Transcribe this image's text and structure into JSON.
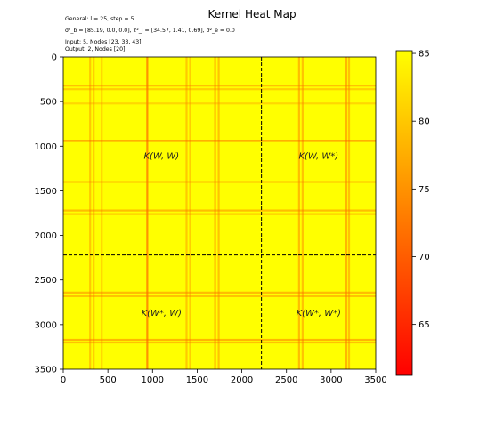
{
  "chart_data": {
    "type": "heatmap",
    "title": "Kernel Heat Map",
    "annotations": [
      "General: l = 25, step = 5",
      "σ²_b = [85.19, 0.0, 0.0], τ²_j = [34.57, 1.41, 0.69], σ²_e = 0.0",
      "Input: 5, Nodes [23, 33, 43]",
      "Output: 2, Nodes [20]"
    ],
    "x_range": [
      0,
      3500
    ],
    "y_range": [
      0,
      3500
    ],
    "y_inverted": true,
    "x_ticks": [
      "0",
      "500",
      "1000",
      "1500",
      "2000",
      "2500",
      "3000",
      "3500"
    ],
    "y_ticks": [
      "0",
      "500",
      "1000",
      "1500",
      "2000",
      "2500",
      "3000",
      "3500"
    ],
    "divider": 2220,
    "divider_style": "dashed",
    "stripes_x": [
      {
        "at": 300,
        "strength": 0.25
      },
      {
        "at": 340,
        "strength": 0.2
      },
      {
        "at": 430,
        "strength": 0.15
      },
      {
        "at": 940,
        "strength": 0.65
      },
      {
        "at": 1380,
        "strength": 0.25
      },
      {
        "at": 1420,
        "strength": 0.2
      },
      {
        "at": 1700,
        "strength": 0.35
      },
      {
        "at": 1740,
        "strength": 0.3
      },
      {
        "at": 2640,
        "strength": 0.35
      },
      {
        "at": 2680,
        "strength": 0.3
      },
      {
        "at": 3170,
        "strength": 0.4
      },
      {
        "at": 3200,
        "strength": 0.3
      }
    ],
    "stripes_y": [
      {
        "at": 320,
        "strength": 0.3
      },
      {
        "at": 360,
        "strength": 0.2
      },
      {
        "at": 520,
        "strength": 0.12
      },
      {
        "at": 940,
        "strength": 0.65
      },
      {
        "at": 1400,
        "strength": 0.25
      },
      {
        "at": 1720,
        "strength": 0.35
      },
      {
        "at": 1760,
        "strength": 0.25
      },
      {
        "at": 2640,
        "strength": 0.35
      },
      {
        "at": 2680,
        "strength": 0.3
      },
      {
        "at": 3170,
        "strength": 0.4
      },
      {
        "at": 3200,
        "strength": 0.3
      }
    ],
    "regions": [
      {
        "label": "K(W, W)",
        "x": 1100,
        "y": 1100
      },
      {
        "label": "K(W, W*)",
        "x": 2860,
        "y": 1100
      },
      {
        "label": "K(W*, W)",
        "x": 1100,
        "y": 2860
      },
      {
        "label": "K(W*, W*)",
        "x": 2860,
        "y": 2860
      }
    ],
    "colorbar": {
      "colormap": "autumn",
      "min": 61.3,
      "max": 85.2,
      "ticks": [
        65,
        70,
        75,
        80,
        85
      ],
      "tick_labels": [
        "65",
        "70",
        "75",
        "80",
        "85"
      ]
    },
    "colors": {
      "high": "#ffff00",
      "low": "#ff0000"
    }
  }
}
